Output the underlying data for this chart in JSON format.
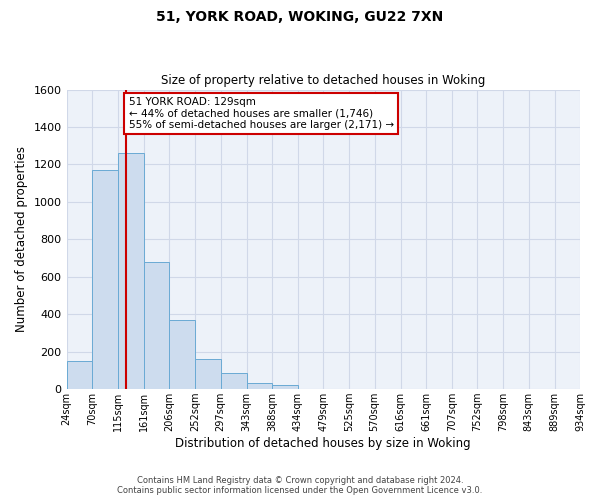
{
  "title": "51, YORK ROAD, WOKING, GU22 7XN",
  "subtitle": "Size of property relative to detached houses in Woking",
  "xlabel": "Distribution of detached houses by size in Woking",
  "ylabel": "Number of detached properties",
  "footer_line1": "Contains HM Land Registry data © Crown copyright and database right 2024.",
  "footer_line2": "Contains public sector information licensed under the Open Government Licence v3.0.",
  "bin_edges": [
    24,
    70,
    115,
    161,
    206,
    252,
    297,
    343,
    388,
    434,
    479,
    525,
    570,
    616,
    661,
    707,
    752,
    798,
    843,
    889,
    934
  ],
  "bin_counts": [
    148,
    1170,
    1262,
    680,
    370,
    163,
    88,
    33,
    20,
    0,
    0,
    0,
    0,
    0,
    0,
    0,
    0,
    0,
    0,
    0
  ],
  "property_size": 129,
  "ylim": [
    0,
    1600
  ],
  "bar_color": "#cddcee",
  "bar_edge_color": "#6aaad4",
  "vline_color": "#cc0000",
  "annotation_line1": "51 YORK ROAD: 129sqm",
  "annotation_line2": "← 44% of detached houses are smaller (1,746)",
  "annotation_line3": "55% of semi-detached houses are larger (2,171) →",
  "annotation_box_edge": "#cc0000",
  "background_color": "#edf2f9",
  "grid_color": "#d0d8e8",
  "tick_labels": [
    "24sqm",
    "70sqm",
    "115sqm",
    "161sqm",
    "206sqm",
    "252sqm",
    "297sqm",
    "343sqm",
    "388sqm",
    "434sqm",
    "479sqm",
    "525sqm",
    "570sqm",
    "616sqm",
    "661sqm",
    "707sqm",
    "752sqm",
    "798sqm",
    "843sqm",
    "889sqm",
    "934sqm"
  ],
  "yticks": [
    0,
    200,
    400,
    600,
    800,
    1000,
    1200,
    1400,
    1600
  ],
  "figsize": [
    6.0,
    5.0
  ],
  "dpi": 100
}
